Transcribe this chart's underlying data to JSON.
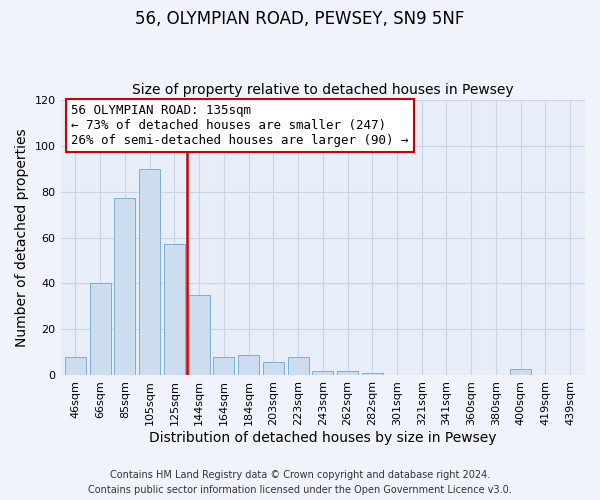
{
  "title": "56, OLYMPIAN ROAD, PEWSEY, SN9 5NF",
  "subtitle": "Size of property relative to detached houses in Pewsey",
  "xlabel": "Distribution of detached houses by size in Pewsey",
  "ylabel": "Number of detached properties",
  "bar_labels": [
    "46sqm",
    "66sqm",
    "85sqm",
    "105sqm",
    "125sqm",
    "144sqm",
    "164sqm",
    "184sqm",
    "203sqm",
    "223sqm",
    "243sqm",
    "262sqm",
    "282sqm",
    "301sqm",
    "321sqm",
    "341sqm",
    "360sqm",
    "380sqm",
    "400sqm",
    "419sqm",
    "439sqm"
  ],
  "bar_values": [
    8,
    40,
    77,
    90,
    57,
    35,
    8,
    9,
    6,
    8,
    2,
    2,
    1,
    0,
    0,
    0,
    0,
    0,
    3,
    0,
    0
  ],
  "bar_color": "#ccddf0",
  "bar_edge_color": "#7aafd4",
  "ylim": [
    0,
    120
  ],
  "yticks": [
    0,
    20,
    40,
    60,
    80,
    100,
    120
  ],
  "vline_color": "#cc0000",
  "annotation_box_title": "56 OLYMPIAN ROAD: 135sqm",
  "annotation_line1": "← 73% of detached houses are smaller (247)",
  "annotation_line2": "26% of semi-detached houses are larger (90) →",
  "annotation_box_edge": "#cc0000",
  "footer_line1": "Contains HM Land Registry data © Crown copyright and database right 2024.",
  "footer_line2": "Contains public sector information licensed under the Open Government Licence v3.0.",
  "bg_color": "#f0f4fa",
  "plot_bg_color": "#e8eef8",
  "grid_color": "#c8d4e8",
  "title_fontsize": 12,
  "subtitle_fontsize": 10,
  "axis_label_fontsize": 10,
  "tick_fontsize": 8,
  "footer_fontsize": 7,
  "annotation_fontsize": 9
}
